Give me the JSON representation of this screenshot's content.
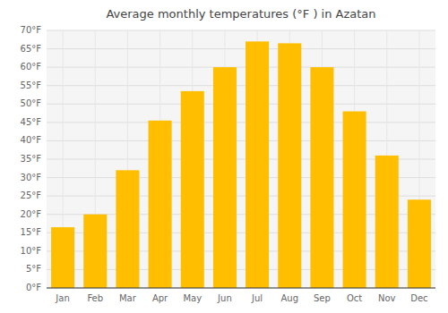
{
  "chart_data": {
    "type": "bar",
    "title": "Average monthly temperatures (°F ) in Azatan",
    "categories": [
      "Jan",
      "Feb",
      "Mar",
      "Apr",
      "May",
      "Jun",
      "Jul",
      "Aug",
      "Sep",
      "Oct",
      "Nov",
      "Dec"
    ],
    "values": [
      16.5,
      20.0,
      32.0,
      45.5,
      53.5,
      60.0,
      67.0,
      66.5,
      60.0,
      48.0,
      36.0,
      24.0
    ],
    "color": "#FFBE00",
    "ylim": [
      0,
      70
    ],
    "yticks": [
      {
        "value": 0,
        "label": "0°F"
      },
      {
        "value": 5,
        "label": "5°F"
      },
      {
        "value": 10,
        "label": "10°F"
      },
      {
        "value": 15,
        "label": "15°F"
      },
      {
        "value": 20,
        "label": "20°F"
      },
      {
        "value": 25,
        "label": "25°F"
      },
      {
        "value": 30,
        "label": "30°F"
      },
      {
        "value": 35,
        "label": "35°F"
      },
      {
        "value": 40,
        "label": "40°F"
      },
      {
        "value": 45,
        "label": "45°F"
      },
      {
        "value": 50,
        "label": "50°F"
      },
      {
        "value": 55,
        "label": "55°F"
      },
      {
        "value": 60,
        "label": "60°F"
      },
      {
        "value": 65,
        "label": "65°F"
      },
      {
        "value": 70,
        "label": "70°F"
      }
    ],
    "grid": true
  }
}
